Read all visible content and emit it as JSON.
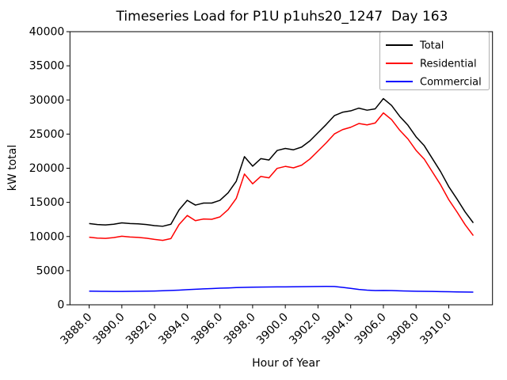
{
  "chart": {
    "title": "Timeseries Load for P1U p1uhs20_1247  Day 163",
    "xlabel": "Hour of Year",
    "ylabel": "kW total"
  },
  "chart_data": {
    "type": "line",
    "title": "Timeseries Load for P1U p1uhs20_1247  Day 163",
    "xlabel": "Hour of Year",
    "ylabel": "kW total",
    "xlim": [
      3886.825,
      3912.675
    ],
    "ylim": [
      0,
      40000
    ],
    "grid": false,
    "legend_position": "upper right",
    "xticks": [
      3888,
      3890,
      3892,
      3894,
      3896,
      3898,
      3900,
      3902,
      3904,
      3906,
      3908,
      3910
    ],
    "xtick_labels": [
      "3888.0",
      "3890.0",
      "3892.0",
      "3894.0",
      "3896.0",
      "3898.0",
      "3900.0",
      "3902.0",
      "3904.0",
      "3906.0",
      "3908.0",
      "3910.0"
    ],
    "yticks": [
      0,
      5000,
      10000,
      15000,
      20000,
      25000,
      30000,
      35000,
      40000
    ],
    "ytick_labels": [
      "0",
      "5000",
      "10000",
      "15000",
      "20000",
      "25000",
      "30000",
      "35000",
      "40000"
    ],
    "x": [
      3888.0,
      3888.5,
      3889.0,
      3889.5,
      3890.0,
      3890.5,
      3891.0,
      3891.5,
      3892.0,
      3892.5,
      3893.0,
      3893.5,
      3894.0,
      3894.5,
      3895.0,
      3895.5,
      3896.0,
      3896.5,
      3897.0,
      3897.5,
      3898.0,
      3898.5,
      3899.0,
      3899.5,
      3900.0,
      3900.5,
      3901.0,
      3901.5,
      3902.0,
      3902.5,
      3903.0,
      3903.5,
      3904.0,
      3904.5,
      3905.0,
      3905.5,
      3906.0,
      3906.5,
      3907.0,
      3907.5,
      3908.0,
      3908.5,
      3909.0,
      3909.5,
      3910.0,
      3910.5,
      3911.0,
      3911.5
    ],
    "series": [
      {
        "name": "Total",
        "color": "#000000",
        "values": [
          11900,
          11750,
          11700,
          11800,
          12000,
          11900,
          11850,
          11750,
          11600,
          11500,
          11800,
          13900,
          15300,
          14600,
          14900,
          14900,
          15300,
          16400,
          18100,
          21700,
          20300,
          21400,
          21200,
          22600,
          22900,
          22700,
          23100,
          24000,
          25200,
          26400,
          27700,
          28200,
          28400,
          28800,
          28500,
          28700,
          30200,
          29200,
          27600,
          26300,
          24600,
          23300,
          21400,
          19500,
          17300,
          15500,
          13600,
          12000
        ]
      },
      {
        "name": "Residential",
        "color": "#ff0000",
        "values": [
          9900,
          9770,
          9730,
          9840,
          10040,
          9930,
          9870,
          9750,
          9580,
          9440,
          9700,
          11750,
          13080,
          12320,
          12570,
          12520,
          12870,
          13930,
          15580,
          19150,
          17720,
          18800,
          18590,
          19980,
          20270,
          20060,
          20450,
          21340,
          22520,
          23710,
          25020,
          25650,
          26000,
          26550,
          26350,
          26620,
          28100,
          27120,
          25560,
          24290,
          22610,
          21330,
          19450,
          17570,
          15390,
          13610,
          11730,
          10140
        ]
      },
      {
        "name": "Commercial",
        "color": "#0000ff",
        "values": [
          2000,
          1980,
          1970,
          1960,
          1960,
          1970,
          1980,
          2000,
          2020,
          2060,
          2100,
          2150,
          2220,
          2280,
          2330,
          2380,
          2430,
          2470,
          2520,
          2550,
          2580,
          2600,
          2610,
          2620,
          2630,
          2640,
          2650,
          2660,
          2680,
          2690,
          2680,
          2550,
          2400,
          2250,
          2150,
          2080,
          2100,
          2080,
          2040,
          2010,
          1990,
          1970,
          1950,
          1930,
          1910,
          1890,
          1870,
          1860
        ]
      }
    ]
  }
}
